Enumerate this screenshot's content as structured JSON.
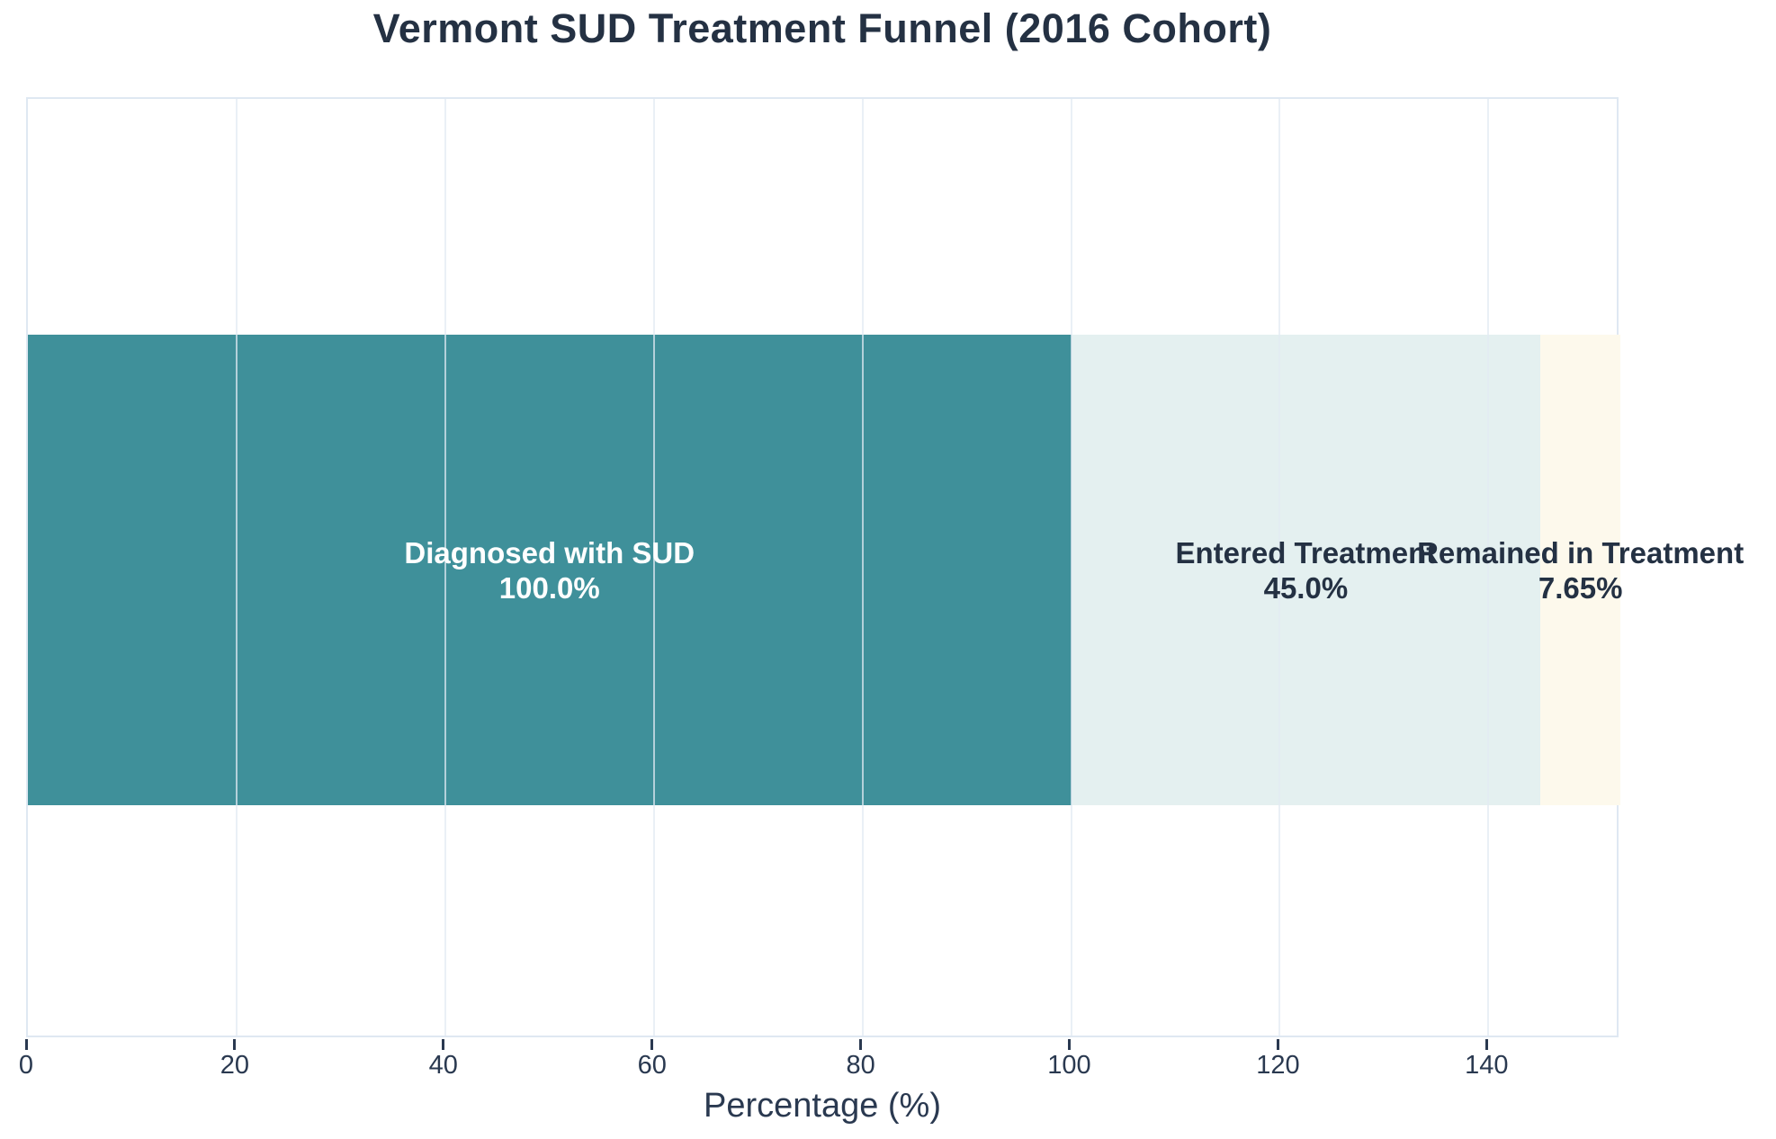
{
  "chart_data": {
    "type": "bar",
    "subtype": "horizontal-stacked-funnel",
    "title": "Vermont SUD Treatment Funnel (2016 Cohort)",
    "xlabel": "Percentage (%)",
    "ylabel": "",
    "xlim": [
      0,
      152.65
    ],
    "x_ticks": [
      0,
      20,
      40,
      60,
      80,
      100,
      120,
      140
    ],
    "grid": "vertical gridlines every 20 units, drawn faintly over bars",
    "legend": "none",
    "stages": [
      {
        "label": "Diagnosed with SUD",
        "value": 100.0,
        "value_label": "100.0%",
        "bar_color": "#3F909A",
        "label_color": "#FFFFFF"
      },
      {
        "label": "Entered Treatment",
        "value": 45.0,
        "value_label": "45.0%",
        "bar_color": "#E4F0F0",
        "label_color": "#243143"
      },
      {
        "label": "Remained in Treatment",
        "value": 7.65,
        "value_label": "7.65%",
        "bar_color": "#FDF9EC",
        "label_color": "#243143"
      }
    ],
    "colors": {
      "title_text": "#243143",
      "axis_text": "#2A3950",
      "plot_border": "#DFE8F2",
      "gridline": "#E7EDF4",
      "background": "#FFFFFF"
    }
  }
}
